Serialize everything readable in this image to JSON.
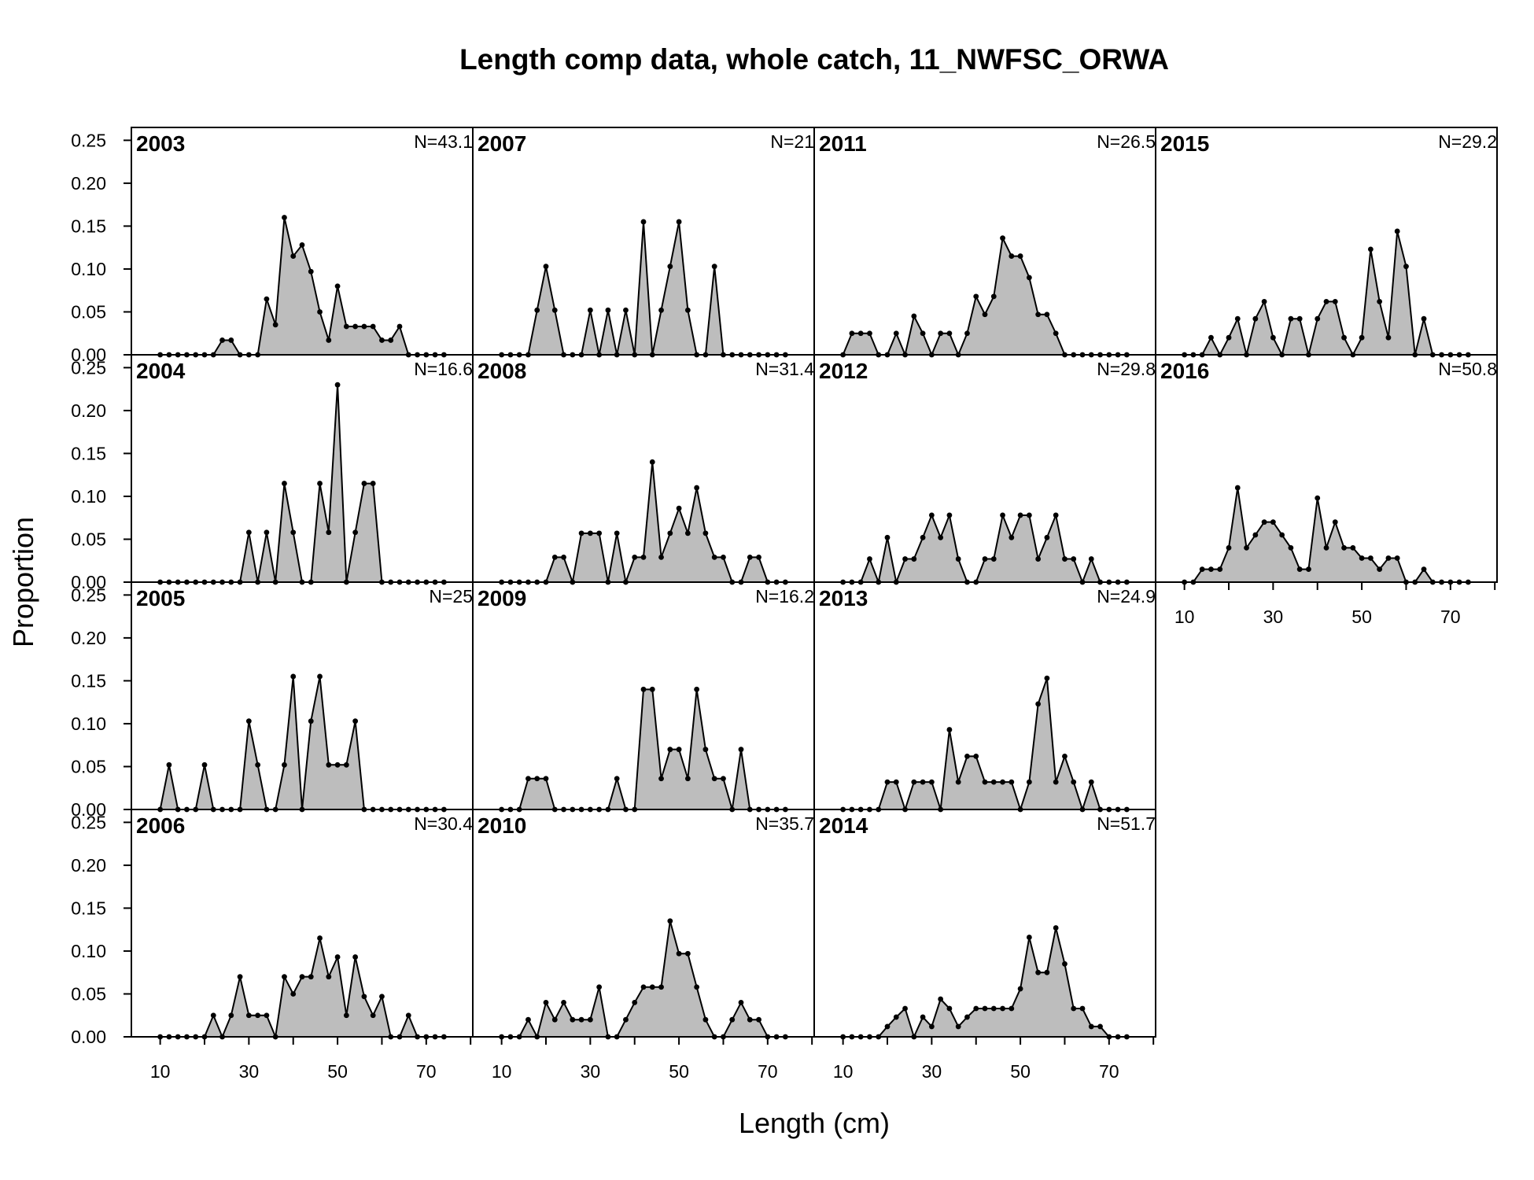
{
  "chart_data": {
    "type": "area",
    "title": "Length comp data, whole catch, 11_NWFSC_ORWA",
    "xlabel": "Length (cm)",
    "ylabel": "Proportion",
    "x": [
      10,
      12,
      14,
      16,
      18,
      20,
      22,
      24,
      26,
      28,
      30,
      32,
      34,
      36,
      38,
      40,
      42,
      44,
      46,
      48,
      50,
      52,
      54,
      56,
      58,
      60,
      62,
      64,
      66,
      68,
      70,
      72,
      74
    ],
    "xlim": [
      3.5,
      80.5
    ],
    "xticks": [
      10,
      30,
      50,
      70
    ],
    "xticks_minor": [
      20,
      40,
      60,
      80
    ],
    "ylim": [
      0,
      0.265
    ],
    "yticks": [
      {
        "value": 0,
        "label": "0.00"
      },
      0.05,
      {
        "value": 0.1,
        "label": "0.10"
      },
      0.15,
      {
        "value": 0.2,
        "label": "0.20"
      },
      0.25
    ],
    "color": "#bdbdbd",
    "line_color": "#000000",
    "panels": [
      {
        "name": "2003",
        "n_label": "N=43.1",
        "values": [
          0,
          0,
          0,
          0,
          0,
          0,
          0,
          0.017,
          0.017,
          0,
          0,
          0,
          0.065,
          0.035,
          0.16,
          0.115,
          0.128,
          0.097,
          0.05,
          0.017,
          0.08,
          0.033,
          0.033,
          0.033,
          0.033,
          0.017,
          0.017,
          0.033,
          0,
          0,
          0,
          0,
          0
        ]
      },
      {
        "name": "2004",
        "n_label": "N=16.6",
        "values": [
          0,
          0,
          0,
          0,
          0,
          0,
          0,
          0,
          0,
          0,
          0.058,
          0,
          0.058,
          0,
          0.115,
          0.058,
          0,
          0,
          0.115,
          0.058,
          0.23,
          0,
          0.058,
          0.115,
          0.115,
          0,
          0,
          0,
          0,
          0,
          0,
          0,
          0
        ]
      },
      {
        "name": "2005",
        "n_label": "N=25",
        "values": [
          0,
          0.052,
          0,
          0,
          0,
          0.052,
          0,
          0,
          0,
          0,
          0.103,
          0.052,
          0,
          0,
          0.052,
          0.155,
          0,
          0.103,
          0.155,
          0.052,
          0.052,
          0.052,
          0.103,
          0,
          0,
          0,
          0,
          0,
          0,
          0,
          0,
          0,
          0
        ]
      },
      {
        "name": "2006",
        "n_label": "N=30.4",
        "values": [
          0,
          0,
          0,
          0,
          0,
          0,
          0.025,
          0,
          0.025,
          0.07,
          0.025,
          0.025,
          0.025,
          0,
          0.07,
          0.05,
          0.07,
          0.07,
          0.115,
          0.07,
          0.093,
          0.025,
          0.093,
          0.047,
          0.025,
          0.047,
          0,
          0,
          0.025,
          0,
          0,
          0,
          0
        ]
      },
      {
        "name": "2007",
        "n_label": "N=21",
        "values": [
          0,
          0,
          0,
          0,
          0.052,
          0.103,
          0.052,
          0,
          0,
          0,
          0.052,
          0,
          0.052,
          0,
          0.052,
          0,
          0.155,
          0,
          0.052,
          0.103,
          0.155,
          0.052,
          0,
          0,
          0.103,
          0,
          0,
          0,
          0,
          0,
          0,
          0,
          0
        ]
      },
      {
        "name": "2008",
        "n_label": "N=31.4",
        "values": [
          0,
          0,
          0,
          0,
          0,
          0,
          0.029,
          0.029,
          0,
          0.057,
          0.057,
          0.057,
          0,
          0.057,
          0,
          0.029,
          0.029,
          0.14,
          0.029,
          0.057,
          0.086,
          0.057,
          0.11,
          0.057,
          0.029,
          0.029,
          0,
          0,
          0.029,
          0.029,
          0,
          0,
          0
        ]
      },
      {
        "name": "2009",
        "n_label": "N=16.2",
        "values": [
          0,
          0,
          0,
          0.036,
          0.036,
          0.036,
          0,
          0,
          0,
          0,
          0,
          0,
          0,
          0.036,
          0,
          0,
          0.14,
          0.14,
          0.036,
          0.07,
          0.07,
          0.036,
          0.14,
          0.07,
          0.036,
          0.036,
          0,
          0.07,
          0,
          0,
          0,
          0,
          0
        ]
      },
      {
        "name": "2010",
        "n_label": "N=35.7",
        "values": [
          0,
          0,
          0,
          0.02,
          0,
          0.04,
          0.02,
          0.04,
          0.02,
          0.02,
          0.02,
          0.058,
          0,
          0,
          0.02,
          0.04,
          0.058,
          0.058,
          0.058,
          0.135,
          0.097,
          0.097,
          0.058,
          0.02,
          0,
          0,
          0.02,
          0.04,
          0.02,
          0.02,
          0,
          0,
          0
        ]
      },
      {
        "name": "2011",
        "n_label": "N=26.5",
        "values": [
          0,
          0.025,
          0.025,
          0.025,
          0,
          0,
          0.025,
          0,
          0.045,
          0.025,
          0,
          0.025,
          0.025,
          0,
          0.025,
          0.068,
          0.047,
          0.068,
          0.136,
          0.115,
          0.115,
          0.09,
          0.047,
          0.047,
          0.025,
          0,
          0,
          0,
          0,
          0,
          0,
          0,
          0
        ]
      },
      {
        "name": "2012",
        "n_label": "N=29.8",
        "values": [
          0,
          0,
          0,
          0.027,
          0,
          0.052,
          0,
          0.027,
          0.027,
          0.052,
          0.078,
          0.052,
          0.078,
          0.027,
          0,
          0,
          0.027,
          0.027,
          0.078,
          0.052,
          0.078,
          0.078,
          0.027,
          0.052,
          0.078,
          0.027,
          0.027,
          0,
          0.027,
          0,
          0,
          0,
          0
        ]
      },
      {
        "name": "2013",
        "n_label": "N=24.9",
        "values": [
          0,
          0,
          0,
          0,
          0,
          0.032,
          0.032,
          0,
          0.032,
          0.032,
          0.032,
          0,
          0.093,
          0.032,
          0.062,
          0.062,
          0.032,
          0.032,
          0.032,
          0.032,
          0,
          0.032,
          0.123,
          0.153,
          0.032,
          0.062,
          0.032,
          0,
          0.032,
          0,
          0,
          0,
          0
        ]
      },
      {
        "name": "2014",
        "n_label": "N=51.7",
        "values": [
          0,
          0,
          0,
          0,
          0,
          0.012,
          0.023,
          0.033,
          0,
          0.023,
          0.012,
          0.044,
          0.033,
          0.012,
          0.023,
          0.033,
          0.033,
          0.033,
          0.033,
          0.033,
          0.056,
          0.116,
          0.075,
          0.075,
          0.127,
          0.085,
          0.033,
          0.033,
          0.012,
          0.012,
          0,
          0,
          0
        ]
      },
      {
        "name": "2015",
        "n_label": "N=29.2",
        "values": [
          0,
          0,
          0,
          0.02,
          0,
          0.02,
          0.042,
          0,
          0.042,
          0.062,
          0.02,
          0,
          0.042,
          0.042,
          0,
          0.042,
          0.062,
          0.062,
          0.02,
          0,
          0.02,
          0.123,
          0.062,
          0.02,
          0.144,
          0.103,
          0,
          0.042,
          0,
          0,
          0,
          0,
          0
        ]
      },
      {
        "name": "2016",
        "n_label": "N=50.8",
        "values": [
          0,
          0,
          0.015,
          0.015,
          0.015,
          0.04,
          0.11,
          0.04,
          0.055,
          0.07,
          0.07,
          0.055,
          0.04,
          0.015,
          0.015,
          0.098,
          0.04,
          0.07,
          0.04,
          0.04,
          0.028,
          0.028,
          0.015,
          0.028,
          0.028,
          0,
          0,
          0.015,
          0,
          0,
          0,
          0,
          0
        ]
      }
    ]
  }
}
